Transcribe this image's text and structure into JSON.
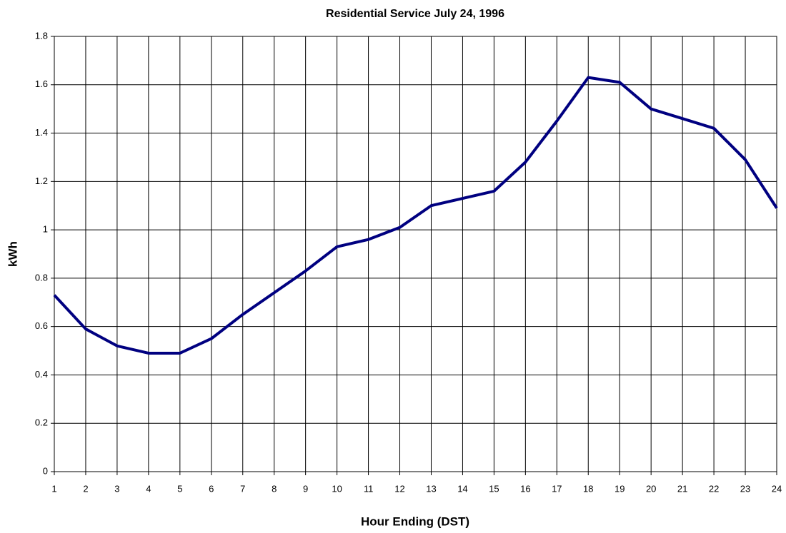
{
  "chart_data": {
    "type": "line",
    "title": "Residential Service July 24, 1996",
    "x_label": "Hour Ending (DST)",
    "y_label": "kWh",
    "x": [
      1,
      2,
      3,
      4,
      5,
      6,
      7,
      8,
      9,
      10,
      11,
      12,
      13,
      14,
      15,
      16,
      17,
      18,
      19,
      20,
      21,
      22,
      23,
      24
    ],
    "series": [
      {
        "name": "kWh",
        "color": "#000080",
        "values": [
          0.73,
          0.59,
          0.52,
          0.49,
          0.49,
          0.55,
          0.65,
          0.74,
          0.83,
          0.93,
          0.96,
          1.01,
          1.1,
          1.13,
          1.16,
          1.28,
          1.45,
          1.63,
          1.61,
          1.5,
          1.46,
          1.42,
          1.29,
          1.09
        ]
      }
    ],
    "xlim": [
      1,
      24
    ],
    "xticks": [
      1,
      2,
      3,
      4,
      5,
      6,
      7,
      8,
      9,
      10,
      11,
      12,
      13,
      14,
      15,
      16,
      17,
      18,
      19,
      20,
      21,
      22,
      23,
      24
    ],
    "ylim": [
      0,
      1.8
    ],
    "yticks": [
      0,
      0.2,
      0.4,
      0.6,
      0.8,
      1,
      1.2,
      1.4,
      1.6,
      1.8
    ],
    "grid": true
  }
}
